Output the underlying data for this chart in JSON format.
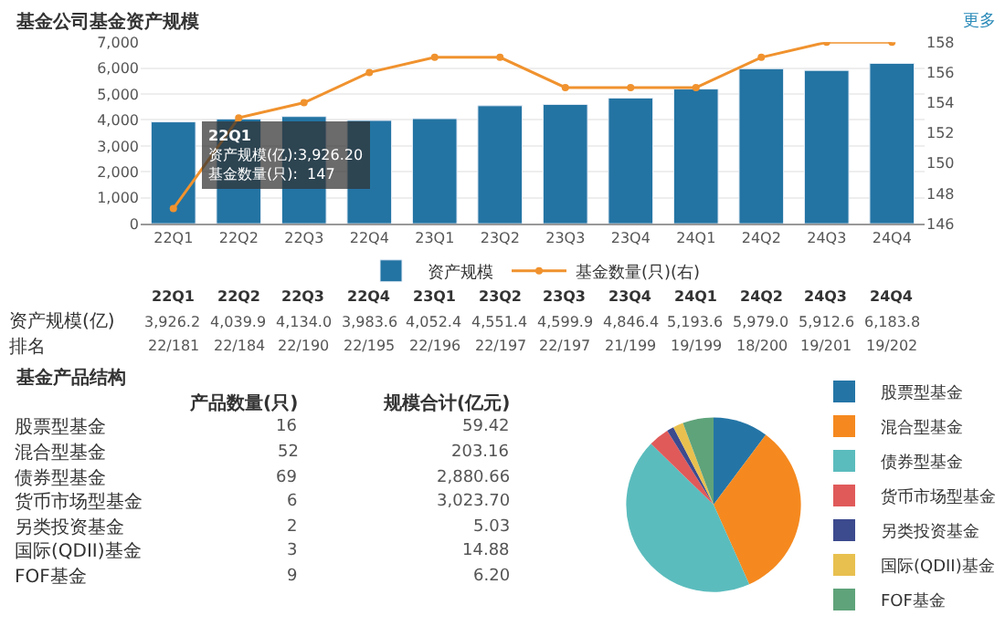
{
  "chart_data": [
    {
      "type": "bar",
      "title": "基金公司基金资产规模",
      "categories": [
        "22Q1",
        "22Q2",
        "22Q3",
        "22Q4",
        "23Q1",
        "23Q2",
        "23Q3",
        "23Q4",
        "24Q1",
        "24Q2",
        "24Q3",
        "24Q4"
      ],
      "series": [
        {
          "name": "资产规模",
          "color": "#2374a3",
          "values": [
            3926.2,
            4039.9,
            4134.0,
            3983.6,
            4052.4,
            4551.4,
            4599.9,
            4846.4,
            5193.6,
            5979.0,
            5912.6,
            6183.8
          ],
          "value_labels": [
            "3,926.2",
            "4,039.9",
            "4,134.0",
            "3,983.6",
            "4,052.4",
            "4,551.4",
            "4,599.9",
            "4,846.4",
            "5,193.6",
            "5,979.0",
            "5,912.6",
            "6,183.8"
          ]
        },
        {
          "name": "基金数量(只)(右)",
          "type": "line",
          "axis": "y2",
          "color": "#f0922e",
          "values": [
            147,
            153,
            154,
            156,
            157,
            157,
            155,
            155,
            155,
            157,
            158,
            158
          ]
        }
      ],
      "ylim": [
        0,
        7000
      ],
      "yticks": [
        0,
        {
          "value": 1000,
          "label": "1,000"
        },
        {
          "value": 2000,
          "label": "2,000"
        },
        {
          "value": 3000,
          "label": "3,000"
        },
        {
          "value": 4000,
          "label": "4,000"
        },
        {
          "value": 5000,
          "label": "5,000"
        },
        {
          "value": 6000,
          "label": "6,000"
        },
        {
          "value": 7000,
          "label": "7,000"
        }
      ],
      "y2lim": [
        146,
        158
      ],
      "y2ticks": [
        146,
        148,
        150,
        152,
        154,
        156,
        158
      ],
      "grid": "y",
      "legend": "bottom",
      "marker": "circle",
      "annotations": [
        "更多",
        "资产规模(亿)",
        "排名",
        "22/181",
        "22/184",
        "22/190",
        "22/195",
        "22/196",
        "22/197",
        "22/197",
        "21/199",
        "19/199",
        "18/200",
        "19/201",
        "19/202",
        "22Q1",
        "资产规模(亿):3,926.20",
        "基金数量(只):  147"
      ]
    },
    {
      "type": "pie",
      "categories": [
        "股票型基金",
        "混合型基金",
        "债券型基金",
        "货币市场型基金",
        "另类投资基金",
        "国际(QDII)基金",
        "FOF基金"
      ],
      "values": [
        10.2,
        33.1,
        44.0,
        3.8,
        1.3,
        1.9,
        5.7
      ],
      "colors": [
        "#2475a6",
        "#f5891f",
        "#5bbcbd",
        "#e05a5a",
        "#3c4a8e",
        "#e8c04f",
        "#5fa37a"
      ],
      "legend": "right",
      "annotations": [
        "基金产品结构",
        "产品数量(只)",
        "规模合计(亿元)",
        "16",
        "52",
        "69",
        "6",
        "2",
        "3",
        "9",
        "59.42",
        "203.16",
        "2,880.66",
        "3,023.70",
        "5.03",
        "14.88",
        "6.20"
      ]
    }
  ]
}
